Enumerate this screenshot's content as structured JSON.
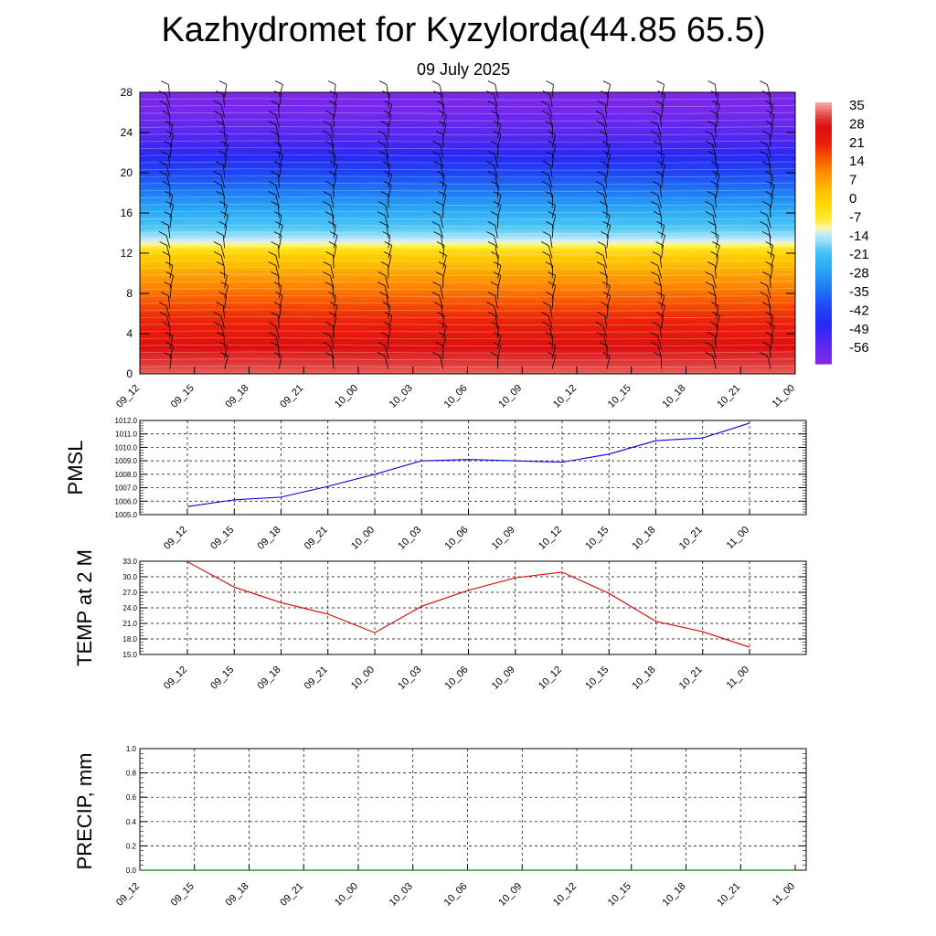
{
  "title": "Kazhydromet for Kyzylorda(44.85 65.5)",
  "subtitle": "09 July 2025",
  "chart_data": [
    {
      "type": "heatmap",
      "variable": "temperature cross-section with wind barbs",
      "x_tick_labels": [
        "09_12",
        "09_15",
        "09_18",
        "09_21",
        "10_00",
        "10_03",
        "10_06",
        "10_09",
        "10_12",
        "10_15",
        "10_18",
        "10_21",
        "11_00"
      ],
      "y_ticks": [
        0,
        4,
        8,
        12,
        16,
        20,
        24,
        28
      ],
      "ylim": [
        0,
        28
      ],
      "colorbar_labels": [
        "35",
        "28",
        "21",
        "14",
        "7",
        "0",
        "-7",
        "-14",
        "-21",
        "-28",
        "-35",
        "-42",
        "-49",
        "-56"
      ],
      "colors": {
        "warm": "#dd1010",
        "hot": "#f07070",
        "orange": "#ff8a00",
        "yellow": "#ffe000",
        "cyan": "#30b8f0",
        "blue": "#2838f0",
        "purple": "#8a3cf0"
      },
      "temperature_profile": [
        {
          "level": 0,
          "t": 32
        },
        {
          "level": 2,
          "t": 28
        },
        {
          "level": 4,
          "t": 22
        },
        {
          "level": 6,
          "t": 18
        },
        {
          "level": 8,
          "t": 12
        },
        {
          "level": 10,
          "t": 6
        },
        {
          "level": 12,
          "t": -2
        },
        {
          "level": 13,
          "t": -12
        },
        {
          "level": 14,
          "t": -18
        },
        {
          "level": 16,
          "t": -26
        },
        {
          "level": 18,
          "t": -34
        },
        {
          "level": 20,
          "t": -42
        },
        {
          "level": 22,
          "t": -50
        },
        {
          "level": 24,
          "t": -56
        },
        {
          "level": 26,
          "t": -60
        },
        {
          "level": 28,
          "t": -62
        }
      ]
    },
    {
      "type": "line",
      "ylabel": "PMSL",
      "x": [
        "09_12",
        "09_15",
        "09_18",
        "09_21",
        "10_00",
        "10_03",
        "10_06",
        "10_09",
        "10_12",
        "10_15",
        "10_18",
        "10_21",
        "11_00"
      ],
      "values": [
        1005.6,
        1006.1,
        1006.3,
        1007.1,
        1008.0,
        1009.0,
        1009.1,
        1009.0,
        1008.9,
        1009.5,
        1010.5,
        1010.7,
        1011.8
      ],
      "ylim": [
        1005.0,
        1012.0
      ],
      "y_tick_labels": [
        "1012.0",
        "1011.0",
        "1010.0",
        "1009.0",
        "1008.0",
        "1007.0",
        "1006.0",
        "1005.0"
      ],
      "color": "#0000dd",
      "grid": true
    },
    {
      "type": "line",
      "ylabel": "TEMP at 2 M",
      "x": [
        "09_12",
        "09_15",
        "09_18",
        "09_21",
        "10_00",
        "10_03",
        "10_06",
        "10_09",
        "10_12",
        "10_15",
        "10_18",
        "10_21",
        "11_00"
      ],
      "values": [
        32.9,
        28.0,
        25.0,
        22.8,
        19.2,
        24.3,
        27.4,
        29.8,
        30.9,
        26.8,
        21.4,
        19.4,
        16.4
      ],
      "ylim": [
        15.0,
        33.0
      ],
      "y_tick_labels": [
        "33.0",
        "30.0",
        "27.0",
        "24.0",
        "21.0",
        "18.0",
        "15.0"
      ],
      "color": "#dd0000",
      "grid": true
    },
    {
      "type": "line",
      "ylabel": "PRECIP, mm",
      "x_tick_labels": [
        "09_12",
        "09_15",
        "09_18",
        "09_21",
        "10_00",
        "10_03",
        "10_06",
        "10_09",
        "10_12",
        "10_15",
        "10_18",
        "10_21",
        "11_00"
      ],
      "values": [
        0,
        0,
        0,
        0,
        0,
        0,
        0,
        0,
        0,
        0,
        0,
        0,
        0
      ],
      "ylim": [
        0.0,
        1.0
      ],
      "y_tick_labels": [
        "1.0",
        "0.8",
        "0.6",
        "0.4",
        "0.2",
        "0.0"
      ],
      "color": "#008800",
      "grid": true
    }
  ]
}
